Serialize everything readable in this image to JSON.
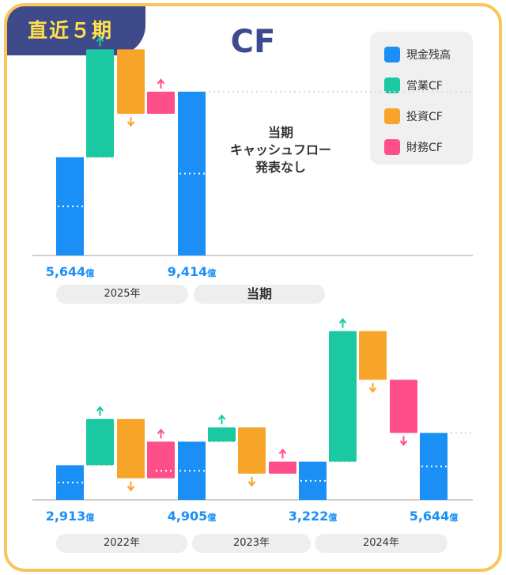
{
  "badge": "直近５期",
  "title": "CF",
  "note_lines": [
    "当期",
    "キャッシュフロー",
    "発表なし"
  ],
  "legend": [
    {
      "label": "現金残高",
      "color": "#1a8ff5"
    },
    {
      "label": "営業CF",
      "color": "#1ac9a2"
    },
    {
      "label": "投資CF",
      "color": "#f7a52a"
    },
    {
      "label": "財務CF",
      "color": "#ff4f8b"
    }
  ],
  "chart_data": [
    {
      "type": "waterfall",
      "title": "",
      "unit": "億",
      "ylim": [
        0,
        11500
      ],
      "periods": [
        "2025年",
        "当期"
      ],
      "bars": [
        {
          "kind": "cash",
          "value": 5644,
          "label": "5,644",
          "period": "2025年"
        },
        {
          "kind": "operating",
          "value": 6200,
          "period": "2025年"
        },
        {
          "kind": "investing",
          "value": -3700,
          "period": "2025年"
        },
        {
          "kind": "financing",
          "value": 1270,
          "period": "2025年"
        },
        {
          "kind": "cash",
          "value": 9414,
          "label": "9,414",
          "period": "当期"
        }
      ]
    },
    {
      "type": "waterfall",
      "title": "",
      "unit": "億",
      "ylim": [
        0,
        16000
      ],
      "periods": [
        "2022年",
        "2023年",
        "2024年"
      ],
      "bars": [
        {
          "kind": "cash",
          "value": 2913,
          "label": "2,913",
          "period": "2022年"
        },
        {
          "kind": "operating",
          "value": 3900,
          "period": "2022年"
        },
        {
          "kind": "investing",
          "value": -5000,
          "period": "2022年"
        },
        {
          "kind": "financing",
          "value": 3092,
          "period": "2022年"
        },
        {
          "kind": "cash",
          "value": 4905,
          "label": "4,905",
          "period": "2023年"
        },
        {
          "kind": "operating",
          "value": 1200,
          "period": "2023年"
        },
        {
          "kind": "investing",
          "value": -3900,
          "period": "2023年"
        },
        {
          "kind": "financing",
          "value": 1017,
          "period": "2023年"
        },
        {
          "kind": "cash",
          "value": 3222,
          "label": "3,222",
          "period": "2024年"
        },
        {
          "kind": "operating",
          "value": 11000,
          "period": "2024年"
        },
        {
          "kind": "investing",
          "value": -4100,
          "period": "2024年"
        },
        {
          "kind": "financing",
          "value": -4478,
          "period": "2024年"
        },
        {
          "kind": "cash",
          "value": 5644,
          "label": "5,644",
          "period": "2024年"
        }
      ]
    }
  ]
}
